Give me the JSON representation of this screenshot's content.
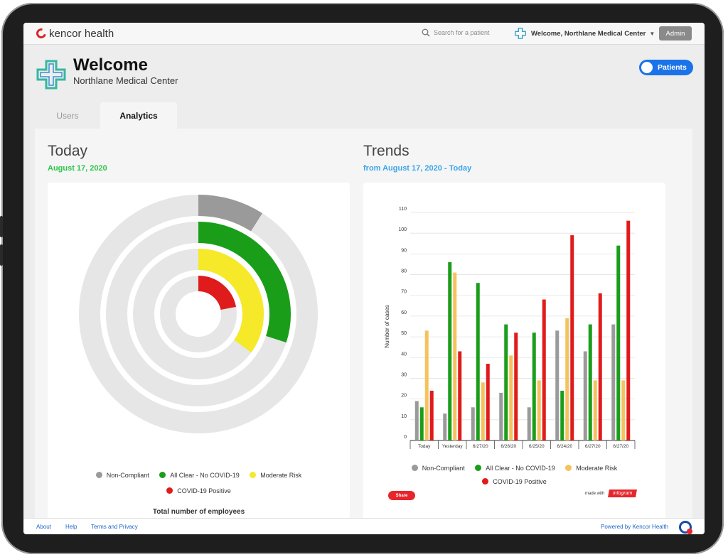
{
  "topbar": {
    "brand": "kencor health",
    "search_placeholder": "Search for a patient",
    "welcome": "Welcome, Northlane Medical Center",
    "admin_label": "Admin"
  },
  "header": {
    "title": "Welcome",
    "subtitle": "Northlane Medical Center",
    "toggle_label": "Patients"
  },
  "tabs": [
    {
      "label": "Users"
    },
    {
      "label": "Analytics"
    }
  ],
  "today": {
    "title": "Today",
    "date": "August 17, 2020",
    "legend": [
      "Non-Compliant",
      "All Clear - No COVID-19",
      "Moderate Risk",
      "COVID-19 Positive"
    ],
    "total_label": "Total number of employees"
  },
  "trends": {
    "title": "Trends",
    "range": "from August 17, 2020 - Today",
    "legend": [
      "Non-Compliant",
      "All Clear - No COVID-19",
      "Moderate Risk",
      "COVID-19 Positive"
    ],
    "share_label": "Share",
    "made_with": "made with",
    "infogram": "infogram"
  },
  "footer": {
    "about": "About",
    "help": "Help",
    "terms": "Terms and Privacy",
    "powered": "Powered by Kencor Health"
  },
  "colors": {
    "noncompliant": "#9a9a9a",
    "allclear": "#1a9e1a",
    "moderate": "#f5e92a",
    "moderate_bar": "#f5c35c",
    "positive": "#e01b1b",
    "accent": "#1a73e8",
    "green_text": "#2ec44a",
    "blue_text": "#3aa5e8"
  },
  "chart_data": [
    {
      "type": "radial-bar",
      "series": [
        {
          "name": "Non-Compliant",
          "fraction": 0.09
        },
        {
          "name": "All Clear - No COVID-19",
          "fraction": 0.3
        },
        {
          "name": "Moderate Risk",
          "fraction": 0.35
        },
        {
          "name": "COVID-19 Positive",
          "fraction": 0.22
        }
      ]
    },
    {
      "type": "bar",
      "ylabel": "Number of cases",
      "ylim": [
        0,
        110
      ],
      "yticks": [
        0,
        10,
        20,
        30,
        40,
        50,
        60,
        70,
        80,
        90,
        100,
        110
      ],
      "grid": true,
      "categories": [
        "Today",
        "Yesterday",
        "6/27/20",
        "6/26/20",
        "6/25/20",
        "6/24/20",
        "6/27/20",
        "6/27/20"
      ],
      "series": [
        {
          "name": "Non-Compliant",
          "values": [
            19,
            13,
            16,
            23,
            16,
            53,
            43,
            56
          ]
        },
        {
          "name": "All Clear - No COVID-19",
          "values": [
            16,
            86,
            76,
            56,
            52,
            24,
            56,
            94
          ]
        },
        {
          "name": "Moderate Risk",
          "values": [
            53,
            81,
            28,
            41,
            29,
            59,
            29,
            29
          ]
        },
        {
          "name": "COVID-19 Positive",
          "values": [
            24,
            43,
            37,
            52,
            68,
            99,
            71,
            106
          ]
        }
      ]
    }
  ]
}
